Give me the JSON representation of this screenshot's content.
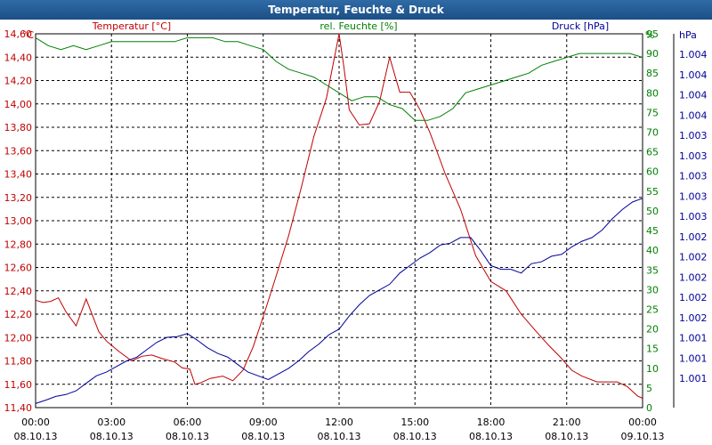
{
  "window": {
    "title": "Temperatur, Feuchte & Druck"
  },
  "chart_data": {
    "type": "line",
    "title": "Temperatur, Feuchte & Druck",
    "grid": true,
    "colors": {
      "temperature": "#c00000",
      "humidity": "#008000",
      "pressure": "#000099",
      "grid": "#000000"
    },
    "axes": {
      "temperature": {
        "label": "Temperatur [°C]",
        "unit_label": "°C",
        "ylim": [
          11.4,
          14.6
        ],
        "ticks": [
          "14,60",
          "14,40",
          "14,20",
          "14,00",
          "13,80",
          "13,60",
          "13,40",
          "13,20",
          "13,00",
          "12,80",
          "12,60",
          "12,40",
          "12,20",
          "12,00",
          "11,80",
          "11,60",
          "11,40"
        ]
      },
      "humidity": {
        "label": "rel. Feuchte [%]",
        "unit_label": "%",
        "ylim": [
          0,
          95
        ],
        "ticks": [
          "95",
          "90",
          "85",
          "80",
          "75",
          "70",
          "65",
          "60",
          "55",
          "50",
          "45",
          "40",
          "35",
          "30",
          "25",
          "20",
          "15",
          "10",
          "5",
          "0"
        ]
      },
      "pressure": {
        "label": "Druck [hPa]",
        "unit_label": "hPa",
        "ticks": [
          "1.004",
          "1.004",
          "1.004",
          "1.004",
          "1.003",
          "1.003",
          "1.003",
          "1.003",
          "1.003",
          "1.002",
          "1.002",
          "1.002",
          "1.002",
          "1.002",
          "1.001",
          "1.001",
          "1.001"
        ]
      },
      "x": {
        "ticks": [
          {
            "time": "00:00",
            "date": "08.10.13"
          },
          {
            "time": "03:00",
            "date": "08.10.13"
          },
          {
            "time": "06:00",
            "date": "08.10.13"
          },
          {
            "time": "09:00",
            "date": "08.10.13"
          },
          {
            "time": "12:00",
            "date": "08.10.13"
          },
          {
            "time": "15:00",
            "date": "08.10.13"
          },
          {
            "time": "18:00",
            "date": "08.10.13"
          },
          {
            "time": "21:00",
            "date": "08.10.13"
          },
          {
            "time": "00:00",
            "date": "09.10.13"
          }
        ],
        "xlim": [
          0,
          24
        ]
      }
    },
    "series": [
      {
        "name": "Temperatur [°C]",
        "axis": "temperature",
        "x": [
          0,
          0.3,
          0.6,
          0.9,
          1.2,
          1.6,
          2.0,
          2.5,
          2.8,
          3.3,
          3.8,
          4.2,
          4.6,
          5.0,
          5.5,
          5.8,
          6.1,
          6.3,
          6.5,
          6.9,
          7.4,
          7.8,
          8.2,
          8.6,
          9.0,
          9.5,
          10.0,
          10.5,
          11.0,
          11.5,
          12.0,
          12.2,
          12.4,
          12.8,
          13.2,
          13.6,
          14.0,
          14.4,
          14.8,
          15.2,
          15.6,
          16.2,
          16.8,
          17.4,
          18.0,
          18.6,
          19.2,
          19.8,
          20.3,
          20.8,
          21.2,
          21.6,
          22.2,
          22.6,
          23.0,
          23.4,
          23.8,
          24.0
        ],
        "values": [
          12.32,
          12.3,
          12.31,
          12.34,
          12.22,
          12.1,
          12.33,
          12.05,
          11.97,
          11.88,
          11.8,
          11.84,
          11.85,
          11.82,
          11.79,
          11.74,
          11.73,
          11.6,
          11.61,
          11.65,
          11.67,
          11.63,
          11.72,
          11.92,
          12.18,
          12.52,
          12.87,
          13.28,
          13.72,
          14.05,
          14.6,
          14.3,
          13.95,
          13.82,
          13.83,
          14.02,
          14.4,
          14.1,
          14.1,
          13.95,
          13.75,
          13.4,
          13.1,
          12.7,
          12.48,
          12.4,
          12.2,
          12.05,
          11.93,
          11.82,
          11.72,
          11.67,
          11.62,
          11.62,
          11.62,
          11.58,
          11.5,
          11.48
        ]
      },
      {
        "name": "rel. Feuchte [%]",
        "axis": "humidity",
        "x": [
          0,
          0.5,
          1.0,
          1.5,
          2.0,
          2.5,
          3.0,
          3.5,
          4.0,
          4.5,
          5.0,
          5.5,
          6.0,
          6.5,
          7.0,
          7.5,
          8.0,
          8.5,
          9.0,
          9.5,
          10.0,
          10.5,
          11.0,
          11.5,
          12.0,
          12.5,
          13.0,
          13.5,
          14.0,
          14.5,
          15.0,
          15.5,
          16.0,
          16.5,
          17.0,
          17.5,
          18.0,
          18.5,
          19.0,
          19.5,
          20.0,
          20.5,
          21.0,
          21.5,
          22.0,
          22.5,
          23.0,
          23.5,
          24.0
        ],
        "values": [
          94,
          92,
          91,
          92,
          91,
          92,
          93,
          93,
          93,
          93,
          93,
          93,
          94,
          94,
          94,
          93,
          93,
          92,
          91,
          88,
          86,
          85,
          84,
          82,
          80,
          78,
          79,
          79,
          77,
          76,
          73,
          73,
          74,
          76,
          80,
          81,
          82,
          83,
          84,
          85,
          87,
          88,
          89,
          90,
          90,
          90,
          90,
          90,
          89
        ]
      },
      {
        "name": "Druck [hPa]",
        "axis": "pressure",
        "x": [
          0,
          0.4,
          0.8,
          1.2,
          1.6,
          2.0,
          2.4,
          2.8,
          3.2,
          3.6,
          4.0,
          4.4,
          4.8,
          5.2,
          5.6,
          6.0,
          6.4,
          6.8,
          7.2,
          7.6,
          8.0,
          8.4,
          8.8,
          9.2,
          9.6,
          10.0,
          10.4,
          10.8,
          11.2,
          11.6,
          12.0,
          12.4,
          12.8,
          13.2,
          13.6,
          14.0,
          14.4,
          14.8,
          15.2,
          15.6,
          16.0,
          16.4,
          16.8,
          17.2,
          17.6,
          18.0,
          18.4,
          18.8,
          19.2,
          19.6,
          20.0,
          20.4,
          20.8,
          21.2,
          21.6,
          22.0,
          22.4,
          22.8,
          23.2,
          23.6,
          24.0
        ],
        "values": [
          1.1,
          2.0,
          3.0,
          3.5,
          4.5,
          6.5,
          8.5,
          9.5,
          11.0,
          12.5,
          13.5,
          15.5,
          17.5,
          18.8,
          19.0,
          19.8,
          18.0,
          16.0,
          14.5,
          13.5,
          11.5,
          9.5,
          8.5,
          7.5,
          9.0,
          10.5,
          12.5,
          15.0,
          17.0,
          19.5,
          21.0,
          24.5,
          27.5,
          30.0,
          31.5,
          33.0,
          36.0,
          38.0,
          40.0,
          41.5,
          43.5,
          44.0,
          45.5,
          45.5,
          42.0,
          38.0,
          37.0,
          37.0,
          36.0,
          38.5,
          39.0,
          40.5,
          41.0,
          43.0,
          44.5,
          45.5,
          47.5,
          50.5,
          53.0,
          55.0,
          56.0
        ]
      }
    ]
  }
}
